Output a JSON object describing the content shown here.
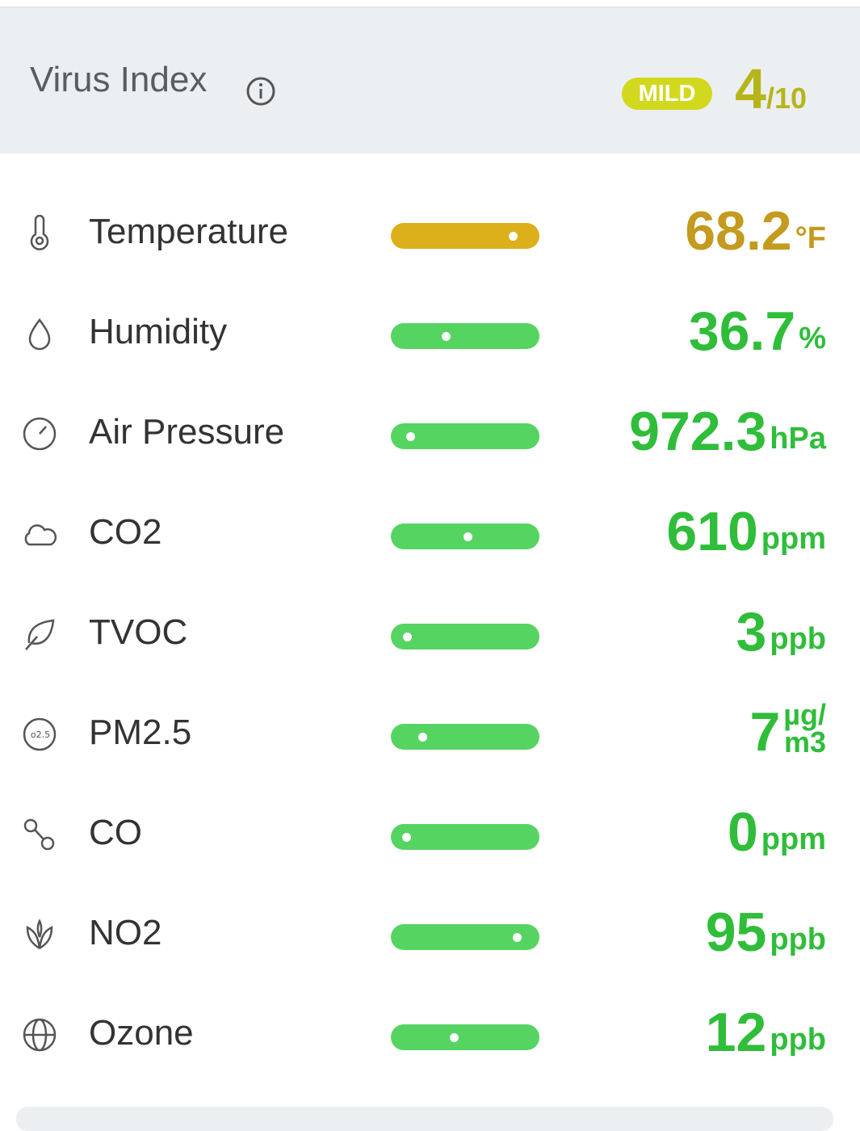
{
  "header": {
    "title": "Virus Index",
    "badge": "MILD",
    "score": "4",
    "score_max": "/10"
  },
  "rows": [
    {
      "label": "Temperature",
      "value": "68.2",
      "unit": "°F"
    },
    {
      "label": "Humidity",
      "value": "36.7",
      "unit": "%"
    },
    {
      "label": "Air Pressure",
      "value": "972.3",
      "unit": "hPa"
    },
    {
      "label": "CO2",
      "value": "610",
      "unit": "ppm"
    },
    {
      "label": "TVOC",
      "value": "3",
      "unit": "ppb"
    },
    {
      "label": "PM2.5",
      "value": "7",
      "unit_lines": [
        "µg/",
        "m3"
      ]
    },
    {
      "label": "CO",
      "value": "0",
      "unit": "ppm"
    },
    {
      "label": "NO2",
      "value": "95",
      "unit": "ppb"
    },
    {
      "label": "Ozone",
      "value": "12",
      "unit": "ppb"
    }
  ]
}
